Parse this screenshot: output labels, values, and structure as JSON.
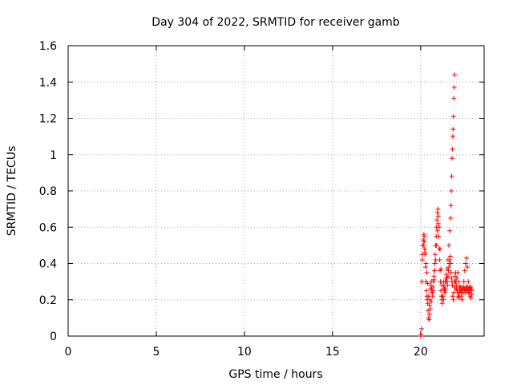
{
  "chart_data": {
    "type": "scatter",
    "title": "Day 304 of 2022, SRMTID for receiver gamb",
    "xlabel": "GPS time / hours",
    "ylabel": "SRMTID / TECUs",
    "xlim": [
      0,
      23.6
    ],
    "ylim": [
      0,
      1.6
    ],
    "xticks": [
      0,
      5,
      10,
      15,
      20
    ],
    "xtick_labels": [
      "0",
      "5",
      "10",
      "15",
      "20"
    ],
    "yticks": [
      0,
      0.2,
      0.4,
      0.6,
      0.8,
      1.0,
      1.2,
      1.4,
      1.6
    ],
    "ytick_labels": [
      "0",
      "0.2",
      "0.4",
      "0.6",
      "0.8",
      "1",
      "1.2",
      "1.4",
      "1.6"
    ],
    "grid": true,
    "marker": "+",
    "color": "#ff0000",
    "series": [
      {
        "name": "SRMTID",
        "x": [
          20.0,
          20.02,
          20.05,
          20.08,
          20.1,
          20.12,
          20.15,
          20.18,
          20.2,
          20.22,
          20.25,
          20.28,
          20.3,
          20.32,
          20.35,
          20.38,
          20.4,
          20.42,
          20.45,
          20.48,
          20.5,
          20.52,
          20.55,
          20.58,
          20.6,
          20.62,
          20.65,
          20.68,
          20.7,
          20.72,
          20.75,
          20.78,
          20.8,
          20.82,
          20.85,
          20.88,
          20.9,
          20.92,
          20.95,
          20.98,
          21.0,
          21.02,
          21.05,
          21.08,
          21.1,
          21.12,
          21.15,
          21.18,
          21.2,
          21.22,
          21.25,
          21.28,
          21.3,
          21.32,
          21.35,
          21.38,
          21.4,
          21.42,
          21.45,
          21.48,
          21.5,
          21.52,
          21.55,
          21.58,
          21.6,
          21.62,
          21.65,
          21.68,
          21.7,
          21.72,
          21.75,
          21.78,
          21.8,
          21.82,
          21.85,
          21.88,
          21.9,
          21.92,
          21.95,
          21.98,
          22.0,
          22.02,
          22.05,
          22.08,
          22.1,
          22.12,
          22.15,
          22.18,
          22.2,
          22.22,
          22.25,
          22.28,
          22.3,
          22.32,
          22.35,
          22.38,
          22.4,
          22.42,
          22.45,
          22.48,
          22.5,
          22.52,
          22.55,
          22.58,
          22.6,
          22.62,
          22.65,
          22.68,
          22.7,
          22.72,
          22.75,
          22.78,
          22.8,
          22.82,
          22.85,
          22.88,
          22.9,
          20.1,
          20.15,
          20.2,
          20.25,
          20.3,
          20.35,
          20.4,
          20.45,
          20.5,
          20.55,
          20.6,
          20.65,
          20.7,
          20.75,
          20.8,
          20.85,
          20.9,
          20.95,
          21.0,
          21.05,
          21.1,
          21.15,
          21.2,
          21.25,
          21.3,
          21.35,
          21.4,
          21.45,
          21.5,
          21.55,
          21.6,
          21.65,
          21.7,
          21.72,
          21.74,
          21.76,
          21.78,
          21.8,
          21.82,
          21.84,
          21.86,
          21.88,
          21.9,
          21.92,
          21.95,
          22.0,
          22.05,
          22.1,
          22.15,
          22.2,
          22.25,
          22.3,
          22.35,
          22.4,
          22.45,
          22.5,
          22.55,
          22.6,
          22.65,
          22.7,
          22.75,
          22.8,
          22.85,
          22.9
        ],
        "y": [
          0.0,
          0.01,
          0.04,
          0.3,
          0.45,
          0.5,
          0.53,
          0.56,
          0.52,
          0.48,
          0.45,
          0.38,
          0.3,
          0.25,
          0.22,
          0.2,
          0.18,
          0.14,
          0.1,
          0.09,
          0.12,
          0.2,
          0.26,
          0.28,
          0.3,
          0.26,
          0.24,
          0.22,
          0.25,
          0.3,
          0.33,
          0.36,
          0.4,
          0.45,
          0.5,
          0.55,
          0.6,
          0.64,
          0.68,
          0.7,
          0.62,
          0.55,
          0.48,
          0.42,
          0.36,
          0.3,
          0.25,
          0.22,
          0.2,
          0.18,
          0.22,
          0.26,
          0.3,
          0.28,
          0.25,
          0.24,
          0.26,
          0.3,
          0.34,
          0.32,
          0.3,
          0.28,
          0.33,
          0.36,
          0.38,
          0.4,
          0.42,
          0.44,
          0.4,
          0.35,
          0.32,
          0.3,
          0.28,
          0.22,
          0.2,
          0.24,
          0.27,
          0.3,
          0.33,
          0.35,
          0.3,
          0.28,
          0.26,
          0.25,
          0.24,
          0.22,
          0.21,
          0.22,
          0.24,
          0.26,
          0.27,
          0.25,
          0.24,
          0.26,
          0.27,
          0.25,
          0.24,
          0.26,
          0.27,
          0.26,
          0.25,
          0.24,
          0.26,
          0.27,
          0.25,
          0.26,
          0.27,
          0.25,
          0.24,
          0.26,
          0.27,
          0.26,
          0.25,
          0.26,
          0.27,
          0.26,
          0.25,
          0.42,
          0.5,
          0.55,
          0.46,
          0.4,
          0.35,
          0.29,
          0.22,
          0.17,
          0.15,
          0.19,
          0.24,
          0.27,
          0.31,
          0.36,
          0.42,
          0.5,
          0.58,
          0.66,
          0.6,
          0.48,
          0.37,
          0.28,
          0.22,
          0.2,
          0.26,
          0.3,
          0.32,
          0.37,
          0.42,
          0.5,
          0.58,
          0.65,
          0.72,
          0.8,
          0.88,
          0.98,
          1.03,
          1.1,
          1.14,
          1.21,
          1.31,
          1.37,
          1.44,
          0.3,
          0.26,
          0.32,
          0.35,
          0.3,
          0.27,
          0.25,
          0.22,
          0.2,
          0.24,
          0.3,
          0.36,
          0.4,
          0.43,
          0.38,
          0.3,
          0.24,
          0.22,
          0.21,
          0.23
        ]
      }
    ]
  }
}
